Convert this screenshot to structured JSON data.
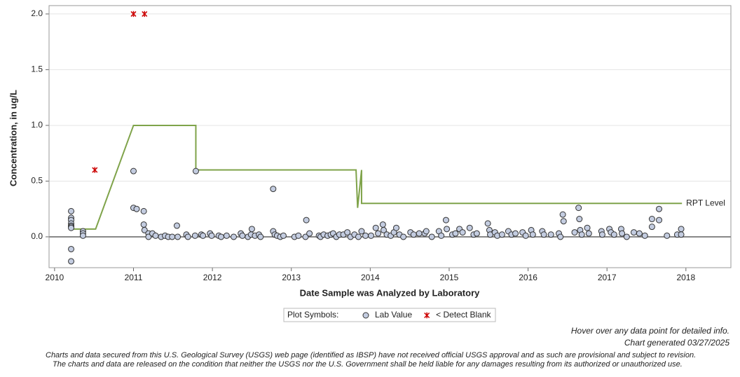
{
  "chart_data": {
    "type": "scatter",
    "y_label": "Concentration, in ug/L",
    "x_label": "Date Sample was Analyzed by Laboratory",
    "xlim": [
      2009.93,
      2018.57
    ],
    "ylim": [
      -0.277,
      2.075
    ],
    "xticks": [
      2010,
      2011,
      2012,
      2013,
      2014,
      2015,
      2016,
      2017,
      2018
    ],
    "yticks": [
      {
        "value": 0,
        "label": "0.0"
      },
      {
        "value": 0.5,
        "label": "0.5"
      },
      {
        "value": 1,
        "label": "1.0"
      },
      {
        "value": 1.5,
        "label": "1.5"
      },
      {
        "value": 2,
        "label": "2.0"
      }
    ],
    "grid": true,
    "legend_title": "Plot Symbols:",
    "series": [
      {
        "name": "Lab Value",
        "marker": "circle",
        "color": "#c3cce0",
        "x": [
          2010.21,
          2010.21,
          2010.21,
          2010.21,
          2010.21,
          2010.21,
          2010.21,
          2010.21,
          2010.21,
          2010.36,
          2010.36,
          2010.36,
          2011.0,
          2011.0,
          2011.04,
          2011.13,
          2011.13,
          2011.14,
          2011.19,
          2011.19,
          2011.24,
          2011.28,
          2011.35,
          2011.4,
          2011.44,
          2011.49,
          2011.55,
          2011.56,
          2011.67,
          2011.69,
          2011.78,
          2011.79,
          2011.86,
          2011.88,
          2011.97,
          2011.99,
          2012.08,
          2012.11,
          2012.18,
          2012.27,
          2012.36,
          2012.38,
          2012.45,
          2012.49,
          2012.5,
          2012.54,
          2012.59,
          2012.61,
          2012.77,
          2012.77,
          2012.79,
          2012.82,
          2012.86,
          2012.9,
          2013.04,
          2013.09,
          2013.18,
          2013.19,
          2013.23,
          2013.35,
          2013.37,
          2013.41,
          2013.46,
          2013.5,
          2013.53,
          2013.57,
          2013.61,
          2013.66,
          2013.71,
          2013.75,
          2013.8,
          2013.85,
          2013.89,
          2013.94,
          2014.01,
          2014.07,
          2014.1,
          2014.16,
          2014.17,
          2014.21,
          2014.26,
          2014.3,
          2014.33,
          2014.37,
          2014.42,
          2014.51,
          2014.55,
          2014.62,
          2014.69,
          2014.71,
          2014.78,
          2014.87,
          2014.9,
          2014.96,
          2014.97,
          2015.04,
          2015.08,
          2015.13,
          2015.17,
          2015.26,
          2015.31,
          2015.35,
          2015.49,
          2015.51,
          2015.52,
          2015.58,
          2015.61,
          2015.67,
          2015.75,
          2015.79,
          2015.84,
          2015.93,
          2015.97,
          2016.04,
          2016.06,
          2016.18,
          2016.2,
          2016.29,
          2016.39,
          2016.41,
          2016.44,
          2016.45,
          2016.59,
          2016.64,
          2016.65,
          2016.66,
          2016.68,
          2016.75,
          2016.77,
          2016.93,
          2016.94,
          2017.03,
          2017.05,
          2017.09,
          2017.18,
          2017.19,
          2017.25,
          2017.34,
          2017.41,
          2017.48,
          2017.57,
          2017.57,
          2017.66,
          2017.66,
          2017.76,
          2017.89,
          2017.94,
          2017.94
        ],
        "values": [
          0.23,
          0.17,
          0.15,
          0.12,
          0.1,
          0.09,
          0.08,
          -0.11,
          -0.22,
          0.05,
          0.03,
          0.01,
          0.59,
          0.26,
          0.25,
          0.23,
          0.11,
          0.06,
          0.03,
          0.0,
          0.03,
          0.01,
          0.0,
          0.01,
          0.0,
          0.0,
          0.1,
          0.0,
          0.02,
          0.0,
          0.01,
          0.59,
          0.02,
          0.01,
          0.03,
          0.01,
          0.01,
          0.0,
          0.01,
          0.0,
          0.03,
          0.01,
          0.0,
          0.02,
          0.07,
          0.01,
          0.02,
          0.0,
          0.43,
          0.05,
          0.02,
          0.01,
          0.0,
          0.01,
          0.0,
          0.01,
          0.0,
          0.15,
          0.03,
          0.01,
          0.0,
          0.02,
          0.01,
          0.02,
          0.03,
          0.0,
          0.02,
          0.02,
          0.04,
          0.0,
          0.02,
          0.0,
          0.05,
          0.01,
          0.01,
          0.08,
          0.03,
          0.11,
          0.06,
          0.02,
          0.01,
          0.04,
          0.08,
          0.02,
          0.0,
          0.04,
          0.02,
          0.03,
          0.03,
          0.05,
          0.0,
          0.05,
          0.01,
          0.15,
          0.07,
          0.02,
          0.03,
          0.07,
          0.04,
          0.08,
          0.02,
          0.03,
          0.12,
          0.06,
          0.02,
          0.04,
          0.01,
          0.02,
          0.05,
          0.02,
          0.03,
          0.04,
          0.01,
          0.06,
          0.02,
          0.05,
          0.02,
          0.02,
          0.03,
          0.0,
          0.2,
          0.14,
          0.04,
          0.26,
          0.16,
          0.06,
          0.02,
          0.08,
          0.03,
          0.05,
          0.02,
          0.07,
          0.04,
          0.02,
          0.07,
          0.03,
          0.0,
          0.04,
          0.03,
          0.01,
          0.09,
          0.16,
          0.25,
          0.15,
          0.01,
          0.02,
          0.07,
          0.02
        ]
      },
      {
        "name": "< Detect Blank",
        "marker": "star",
        "color": "#cc0000",
        "x": [
          2010.51,
          2011.0,
          2011.14
        ],
        "values": [
          0.6,
          2.0,
          2.0
        ]
      },
      {
        "name": "RPT Level",
        "marker": "line",
        "color": "#7fa34a",
        "x": [
          2010.22,
          2010.52,
          2011.0,
          2011.79,
          2011.79,
          2013.82,
          2013.84,
          2013.89,
          2013.89,
          2017.95
        ],
        "values": [
          0.07,
          0.07,
          1.0,
          1.0,
          0.6,
          0.6,
          0.26,
          0.6,
          0.3,
          0.3
        ]
      }
    ],
    "notes": [
      "Hover over any data point for detailed info.",
      "Chart generated 03/27/2025"
    ],
    "footnote": [
      "Charts and data secured from this U.S. Geological Survey (USGS) web page (identified as IBSP) have not received official USGS approval and as such are provisional and subject to revision.",
      "The charts and data are released on the condition that neither the USGS nor the U.S. Government shall be held liable for any damages resulting from its authorized or unauthorized use."
    ]
  }
}
